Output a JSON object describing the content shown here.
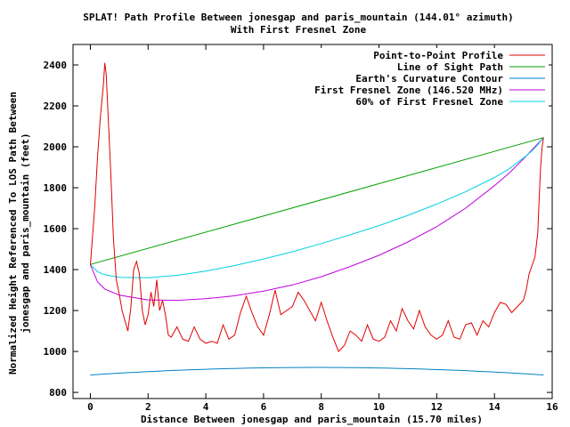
{
  "chart_data": {
    "type": "line",
    "title": "SPLAT! Path Profile Between jonesgap and paris_mountain (144.01° azimuth)",
    "subtitle": "With First Fresnel Zone",
    "xlabel": "Distance Between jonesgap and paris_mountain (15.70 miles)",
    "ylabel_line1": "Normalized Height Referenced To LOS Path Between",
    "ylabel_line2": "jonesgap and paris_mountain (feet)",
    "xlim": [
      -0.6,
      16.0
    ],
    "ylim": [
      770,
      2500
    ],
    "x_ticks": [
      0,
      2,
      4,
      6,
      8,
      10,
      12,
      14,
      16
    ],
    "y_ticks": [
      800,
      1000,
      1200,
      1400,
      1600,
      1800,
      2000,
      2200,
      2400
    ],
    "grid": false,
    "legend_position": "top-right",
    "series": [
      {
        "name": "Point-to-Point Profile",
        "color": "#e00000",
        "x": [
          0,
          0.15,
          0.25,
          0.35,
          0.45,
          0.5,
          0.55,
          0.6,
          0.7,
          0.8,
          0.9,
          1.0,
          1.1,
          1.2,
          1.3,
          1.4,
          1.5,
          1.6,
          1.7,
          1.8,
          1.9,
          2.0,
          2.1,
          2.2,
          2.3,
          2.4,
          2.5,
          2.6,
          2.7,
          2.8,
          3.0,
          3.2,
          3.4,
          3.6,
          3.8,
          4.0,
          4.2,
          4.4,
          4.6,
          4.8,
          5.0,
          5.2,
          5.4,
          5.6,
          5.8,
          6.0,
          6.2,
          6.4,
          6.6,
          6.8,
          7.0,
          7.2,
          7.4,
          7.6,
          7.8,
          8.0,
          8.2,
          8.4,
          8.6,
          8.8,
          9.0,
          9.2,
          9.4,
          9.6,
          9.8,
          10.0,
          10.2,
          10.4,
          10.6,
          10.8,
          11.0,
          11.2,
          11.4,
          11.6,
          11.8,
          12.0,
          12.2,
          12.4,
          12.6,
          12.8,
          13.0,
          13.2,
          13.4,
          13.6,
          13.8,
          14.0,
          14.2,
          14.4,
          14.6,
          14.8,
          15.0,
          15.1,
          15.2,
          15.3,
          15.4,
          15.5,
          15.55,
          15.6,
          15.65,
          15.7
        ],
        "y": [
          1420,
          1700,
          1950,
          2150,
          2300,
          2410,
          2350,
          2200,
          1900,
          1550,
          1350,
          1280,
          1200,
          1150,
          1100,
          1210,
          1400,
          1440,
          1380,
          1200,
          1130,
          1180,
          1290,
          1220,
          1350,
          1200,
          1250,
          1180,
          1080,
          1070,
          1120,
          1060,
          1050,
          1120,
          1060,
          1040,
          1050,
          1040,
          1130,
          1060,
          1080,
          1190,
          1270,
          1190,
          1120,
          1080,
          1180,
          1300,
          1180,
          1200,
          1220,
          1290,
          1250,
          1200,
          1150,
          1240,
          1150,
          1070,
          1000,
          1030,
          1100,
          1080,
          1050,
          1130,
          1060,
          1050,
          1070,
          1150,
          1100,
          1210,
          1150,
          1110,
          1200,
          1120,
          1080,
          1060,
          1080,
          1150,
          1070,
          1060,
          1130,
          1140,
          1080,
          1150,
          1120,
          1190,
          1240,
          1230,
          1190,
          1220,
          1250,
          1300,
          1380,
          1420,
          1460,
          1580,
          1750,
          1900,
          2000,
          2045
        ]
      },
      {
        "name": "Line of Sight Path",
        "color": "#00a000",
        "x": [
          0,
          15.7
        ],
        "y": [
          1425,
          2045
        ]
      },
      {
        "name": "Earth's Curvature Contour",
        "color": "#0080c0",
        "curve": "parabola",
        "x_ends": [
          0,
          15.7
        ],
        "y_ends": [
          885,
          885
        ],
        "y_mid": 922
      },
      {
        "name": "First Fresnel Zone (146.520 MHz)",
        "color": "#c000e0",
        "x": [
          0,
          0.25,
          0.5,
          1,
          2,
          3,
          4,
          5,
          6,
          7,
          8,
          9,
          10,
          11,
          12,
          13,
          14,
          14.5,
          15,
          15.3,
          15.5,
          15.7
        ],
        "y": [
          1425,
          1340,
          1305,
          1275,
          1252,
          1250,
          1258,
          1272,
          1295,
          1325,
          1365,
          1415,
          1470,
          1535,
          1610,
          1700,
          1810,
          1870,
          1940,
          1985,
          2015,
          2045
        ]
      },
      {
        "name": "60% of First Fresnel Zone",
        "color": "#00d0e0",
        "x": [
          0,
          0.25,
          0.5,
          1,
          2,
          3,
          4,
          5,
          6,
          7,
          8,
          9,
          10,
          11,
          12,
          13,
          14,
          14.5,
          15,
          15.3,
          15.5,
          15.7
        ],
        "y": [
          1425,
          1390,
          1375,
          1362,
          1360,
          1372,
          1393,
          1420,
          1452,
          1487,
          1527,
          1570,
          1615,
          1665,
          1720,
          1780,
          1850,
          1892,
          1945,
          1980,
          2010,
          2045
        ]
      }
    ]
  }
}
